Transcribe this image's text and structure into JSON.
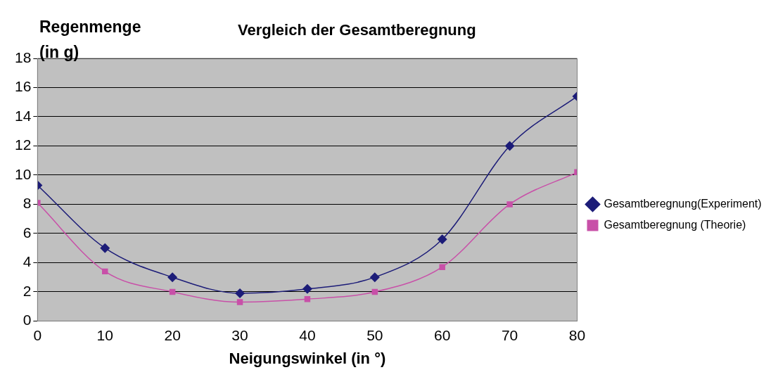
{
  "chart_data": {
    "type": "line",
    "title": "Vergleich der Gesamtberegnung",
    "xlabel": "Neigungswinkel (in °)",
    "ylabel": "Regenmenge (in g)",
    "x": [
      0,
      10,
      20,
      30,
      40,
      50,
      60,
      70,
      80
    ],
    "series": [
      {
        "name": "Gesamtberegnung(Experiment)",
        "color": "#1c1c78",
        "marker": "diamond",
        "values": [
          9.3,
          5.0,
          3.0,
          1.9,
          2.2,
          3.0,
          5.6,
          12.0,
          15.4
        ]
      },
      {
        "name": "Gesamtberegnung (Theorie)",
        "color": "#c850a8",
        "marker": "square",
        "values": [
          8.1,
          3.4,
          2.0,
          1.3,
          1.5,
          2.0,
          3.7,
          8.0,
          10.2
        ]
      }
    ],
    "xlim": [
      0,
      80
    ],
    "xticks": [
      0,
      10,
      20,
      30,
      40,
      50,
      60,
      70,
      80
    ],
    "ylim": [
      0,
      18
    ],
    "yticks": [
      0,
      2,
      4,
      6,
      8,
      10,
      12,
      14,
      16,
      18
    ],
    "grid": "y",
    "legend": "right",
    "line_style": "solid"
  }
}
